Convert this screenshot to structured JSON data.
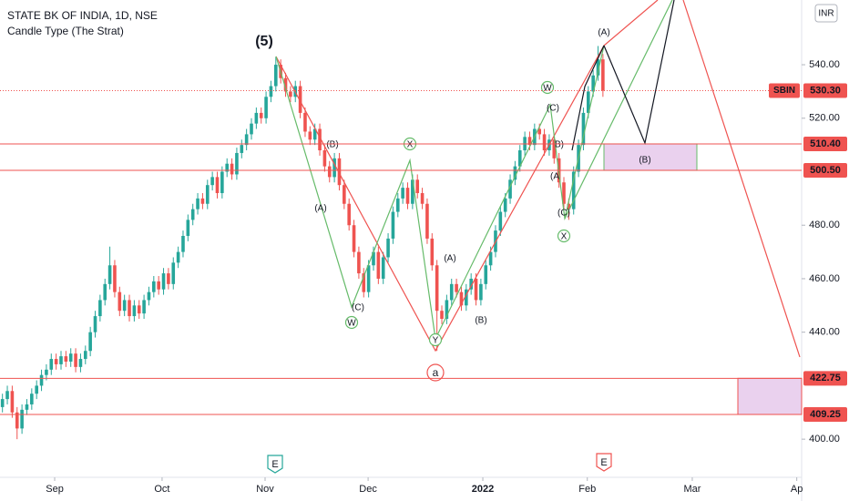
{
  "chart_data": {
    "type": "candlestick",
    "title": "STATE BK OF INDIA, 1D, NSE",
    "subtitle": "Candle Type (The Strat)",
    "currency": "INR",
    "up_color": "#26a69a",
    "down_color": "#ef5350",
    "xlim": [
      -0.5,
      163.7
    ],
    "xticks": [
      {
        "value": 10.7,
        "label": "Sep"
      },
      {
        "value": 32.7,
        "label": "Oct"
      },
      {
        "value": 53.8,
        "label": "Nov"
      },
      {
        "value": 74.9,
        "label": "Dec"
      },
      {
        "value": 98.4,
        "label": "2022"
      },
      {
        "value": 119.8,
        "label": "Feb"
      },
      {
        "value": 141.3,
        "label": "Mar"
      },
      {
        "value": 162.7,
        "label": "Ap"
      }
    ],
    "ylim": [
      385.4,
      564.2
    ],
    "yticks": [
      {
        "value": 400,
        "label": "400.00"
      },
      {
        "value": 440,
        "label": "440.00"
      },
      {
        "value": 460,
        "label": "460.00"
      },
      {
        "value": 480,
        "label": "480.00"
      },
      {
        "value": 520,
        "label": "520.00"
      },
      {
        "value": 540,
        "label": "540.00"
      }
    ],
    "open": [
      412,
      415,
      418,
      410,
      404,
      411,
      413,
      417,
      420,
      424,
      426,
      430,
      428,
      431,
      429,
      432,
      427,
      430,
      433,
      440,
      446,
      452,
      458,
      465,
      455,
      448,
      452,
      446,
      450,
      447,
      452,
      455,
      459,
      456,
      462,
      458,
      466,
      470,
      476,
      482,
      486,
      490,
      488,
      495,
      498,
      492,
      500,
      503,
      499,
      507,
      510,
      514,
      518,
      522,
      520,
      528,
      532,
      540,
      535,
      530,
      528,
      532,
      522,
      515,
      512,
      516,
      508,
      502,
      498,
      505,
      495,
      488,
      480,
      470,
      462,
      455,
      465,
      470,
      460,
      468,
      475,
      485,
      490,
      494,
      488,
      497,
      492,
      488,
      475,
      465,
      448,
      445,
      452,
      458,
      455,
      450,
      456,
      460,
      452,
      458,
      465,
      470,
      478,
      485,
      490,
      497,
      502,
      508,
      513,
      510,
      516,
      514,
      508,
      512,
      505,
      496,
      488,
      486,
      500,
      510,
      522,
      530,
      536,
      542
    ],
    "high": [
      417,
      420,
      420,
      412,
      413,
      415,
      419,
      422,
      426,
      428,
      432,
      432,
      433,
      433,
      434,
      434,
      432,
      435,
      442,
      448,
      454,
      460,
      472,
      467,
      457,
      454,
      454,
      452,
      452,
      454,
      457,
      461,
      461,
      464,
      464,
      468,
      472,
      478,
      484,
      488,
      492,
      492,
      497,
      500,
      500,
      502,
      505,
      505,
      509,
      512,
      516,
      520,
      524,
      524,
      530,
      534,
      543,
      542,
      537,
      532,
      534,
      534,
      524,
      517,
      518,
      518,
      510,
      504,
      507,
      507,
      497,
      490,
      482,
      472,
      464,
      467,
      472,
      472,
      470,
      477,
      487,
      492,
      496,
      496,
      499,
      499,
      494,
      490,
      477,
      467,
      450,
      454,
      460,
      460,
      457,
      458,
      462,
      462,
      460,
      467,
      472,
      480,
      487,
      492,
      499,
      504,
      510,
      515,
      515,
      518,
      518,
      516,
      514,
      514,
      507,
      498,
      490,
      502,
      512,
      524,
      532,
      538,
      547,
      544
    ],
    "low": [
      410,
      413,
      408,
      400,
      402,
      409,
      411,
      415,
      418,
      422,
      424,
      426,
      426,
      427,
      427,
      425,
      425,
      428,
      431,
      438,
      444,
      450,
      456,
      453,
      446,
      446,
      444,
      444,
      445,
      445,
      450,
      453,
      454,
      454,
      456,
      456,
      464,
      468,
      474,
      480,
      484,
      486,
      486,
      493,
      490,
      490,
      498,
      497,
      497,
      505,
      508,
      512,
      516,
      518,
      518,
      526,
      530,
      533,
      528,
      526,
      526,
      520,
      513,
      510,
      510,
      506,
      500,
      496,
      496,
      493,
      486,
      478,
      468,
      460,
      453,
      453,
      463,
      458,
      458,
      466,
      473,
      483,
      488,
      486,
      486,
      490,
      486,
      473,
      463,
      433,
      443,
      443,
      450,
      453,
      448,
      448,
      454,
      450,
      450,
      456,
      463,
      468,
      476,
      483,
      488,
      495,
      500,
      506,
      508,
      508,
      512,
      506,
      506,
      503,
      494,
      486,
      482,
      484,
      498,
      508,
      520,
      528,
      534,
      528
    ],
    "close": [
      415,
      418,
      410,
      404,
      411,
      413,
      417,
      420,
      424,
      426,
      430,
      428,
      431,
      429,
      432,
      427,
      430,
      433,
      440,
      446,
      452,
      458,
      465,
      455,
      448,
      452,
      446,
      450,
      447,
      452,
      455,
      459,
      456,
      462,
      458,
      466,
      470,
      476,
      482,
      486,
      490,
      488,
      495,
      498,
      492,
      500,
      503,
      499,
      507,
      510,
      514,
      518,
      522,
      520,
      528,
      532,
      540,
      535,
      530,
      528,
      532,
      522,
      515,
      512,
      516,
      508,
      502,
      498,
      505,
      495,
      488,
      480,
      470,
      462,
      455,
      465,
      470,
      460,
      468,
      475,
      485,
      490,
      494,
      488,
      497,
      492,
      488,
      475,
      465,
      448,
      445,
      452,
      458,
      455,
      450,
      456,
      460,
      452,
      458,
      465,
      470,
      478,
      485,
      490,
      497,
      502,
      508,
      513,
      510,
      516,
      514,
      508,
      512,
      505,
      496,
      488,
      486,
      500,
      510,
      522,
      530,
      536,
      542,
      530.3
    ],
    "last_price": {
      "name": "SBIN",
      "value": 530.3,
      "label": "530.30"
    },
    "hlines": [
      {
        "value": 510.4,
        "label": "510.40"
      },
      {
        "value": 500.5,
        "label": "500.50"
      },
      {
        "value": 422.75,
        "label": "422.75"
      },
      {
        "value": 409.25,
        "label": "409.25"
      }
    ],
    "annotations": [
      "(5)",
      "(B)",
      "(A)",
      "(C)",
      "W",
      "X",
      "(A)",
      "(B)",
      "Y",
      "a",
      "W",
      "(C)",
      "B)",
      "(A",
      "(C)",
      "X",
      "(A)",
      "(B)",
      "E",
      "E"
    ]
  }
}
